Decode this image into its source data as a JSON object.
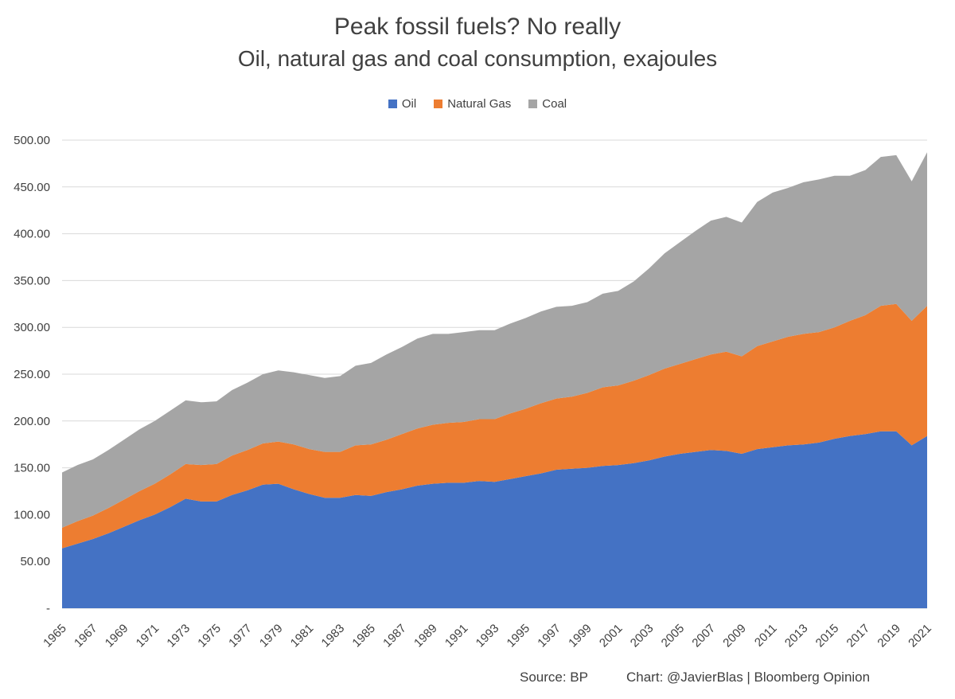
{
  "title": "Peak fossil fuels? No really",
  "subtitle": "Oil, natural gas and coal consumption, exajoules",
  "legend": [
    {
      "label": "Oil",
      "color": "#4472C4"
    },
    {
      "label": "Natural Gas",
      "color": "#ED7D31"
    },
    {
      "label": "Coal",
      "color": "#A5A5A5"
    }
  ],
  "footer": {
    "source": "Source: BP",
    "credit": "Chart: @JavierBlas | Bloomberg Opinion"
  },
  "chart_data": {
    "type": "area",
    "stacked": true,
    "x": [
      1965,
      1966,
      1967,
      1968,
      1969,
      1970,
      1971,
      1972,
      1973,
      1974,
      1975,
      1976,
      1977,
      1978,
      1979,
      1980,
      1981,
      1982,
      1983,
      1984,
      1985,
      1986,
      1987,
      1988,
      1989,
      1990,
      1991,
      1992,
      1993,
      1994,
      1995,
      1996,
      1997,
      1998,
      1999,
      2000,
      2001,
      2002,
      2003,
      2004,
      2005,
      2006,
      2007,
      2008,
      2009,
      2010,
      2011,
      2012,
      2013,
      2014,
      2015,
      2016,
      2017,
      2018,
      2019,
      2020,
      2021
    ],
    "x_tick_labels": [
      "1965",
      "1967",
      "1969",
      "1971",
      "1973",
      "1975",
      "1977",
      "1979",
      "1981",
      "1983",
      "1985",
      "1987",
      "1989",
      "1991",
      "1993",
      "1995",
      "1997",
      "1999",
      "2001",
      "2003",
      "2005",
      "2007",
      "2009",
      "2011",
      "2013",
      "2015",
      "2017",
      "2019",
      "2021"
    ],
    "y_tick_labels": [
      "-",
      "50.00",
      "100.00",
      "150.00",
      "200.00",
      "250.00",
      "300.00",
      "350.00",
      "400.00",
      "450.00",
      "500.00"
    ],
    "ylim": [
      0,
      500
    ],
    "grid": true,
    "legend_position": "top",
    "series": [
      {
        "name": "Oil",
        "color": "#4472C4",
        "values": [
          64,
          69,
          74,
          80,
          87,
          94,
          100,
          108,
          117,
          114,
          114,
          121,
          126,
          132,
          133,
          127,
          122,
          118,
          118,
          121,
          120,
          124,
          127,
          131,
          133,
          134,
          134,
          136,
          135,
          138,
          141,
          144,
          148,
          149,
          150,
          152,
          153,
          155,
          158,
          162,
          165,
          167,
          169,
          168,
          165,
          170,
          172,
          174,
          175,
          177,
          181,
          184,
          186,
          189,
          189,
          174,
          184
        ]
      },
      {
        "name": "Natural Gas",
        "color": "#ED7D31",
        "values": [
          22,
          24,
          25,
          27,
          29,
          31,
          33,
          35,
          37,
          39,
          40,
          42,
          43,
          44,
          45,
          48,
          48,
          49,
          49,
          53,
          55,
          56,
          59,
          61,
          63,
          64,
          65,
          66,
          67,
          70,
          72,
          75,
          76,
          77,
          80,
          84,
          85,
          88,
          91,
          94,
          96,
          99,
          102,
          106,
          104,
          110,
          113,
          116,
          118,
          118,
          119,
          123,
          127,
          134,
          136,
          133,
          139
        ]
      },
      {
        "name": "Coal",
        "color": "#A5A5A5",
        "values": [
          59,
          60,
          60,
          62,
          64,
          66,
          67,
          68,
          68,
          67,
          67,
          70,
          72,
          74,
          76,
          77,
          79,
          79,
          81,
          85,
          87,
          91,
          93,
          96,
          97,
          95,
          96,
          95,
          95,
          96,
          97,
          98,
          98,
          97,
          97,
          100,
          101,
          106,
          114,
          123,
          130,
          137,
          143,
          144,
          143,
          154,
          159,
          159,
          162,
          163,
          162,
          155,
          155,
          159,
          159,
          149,
          164
        ]
      }
    ]
  }
}
